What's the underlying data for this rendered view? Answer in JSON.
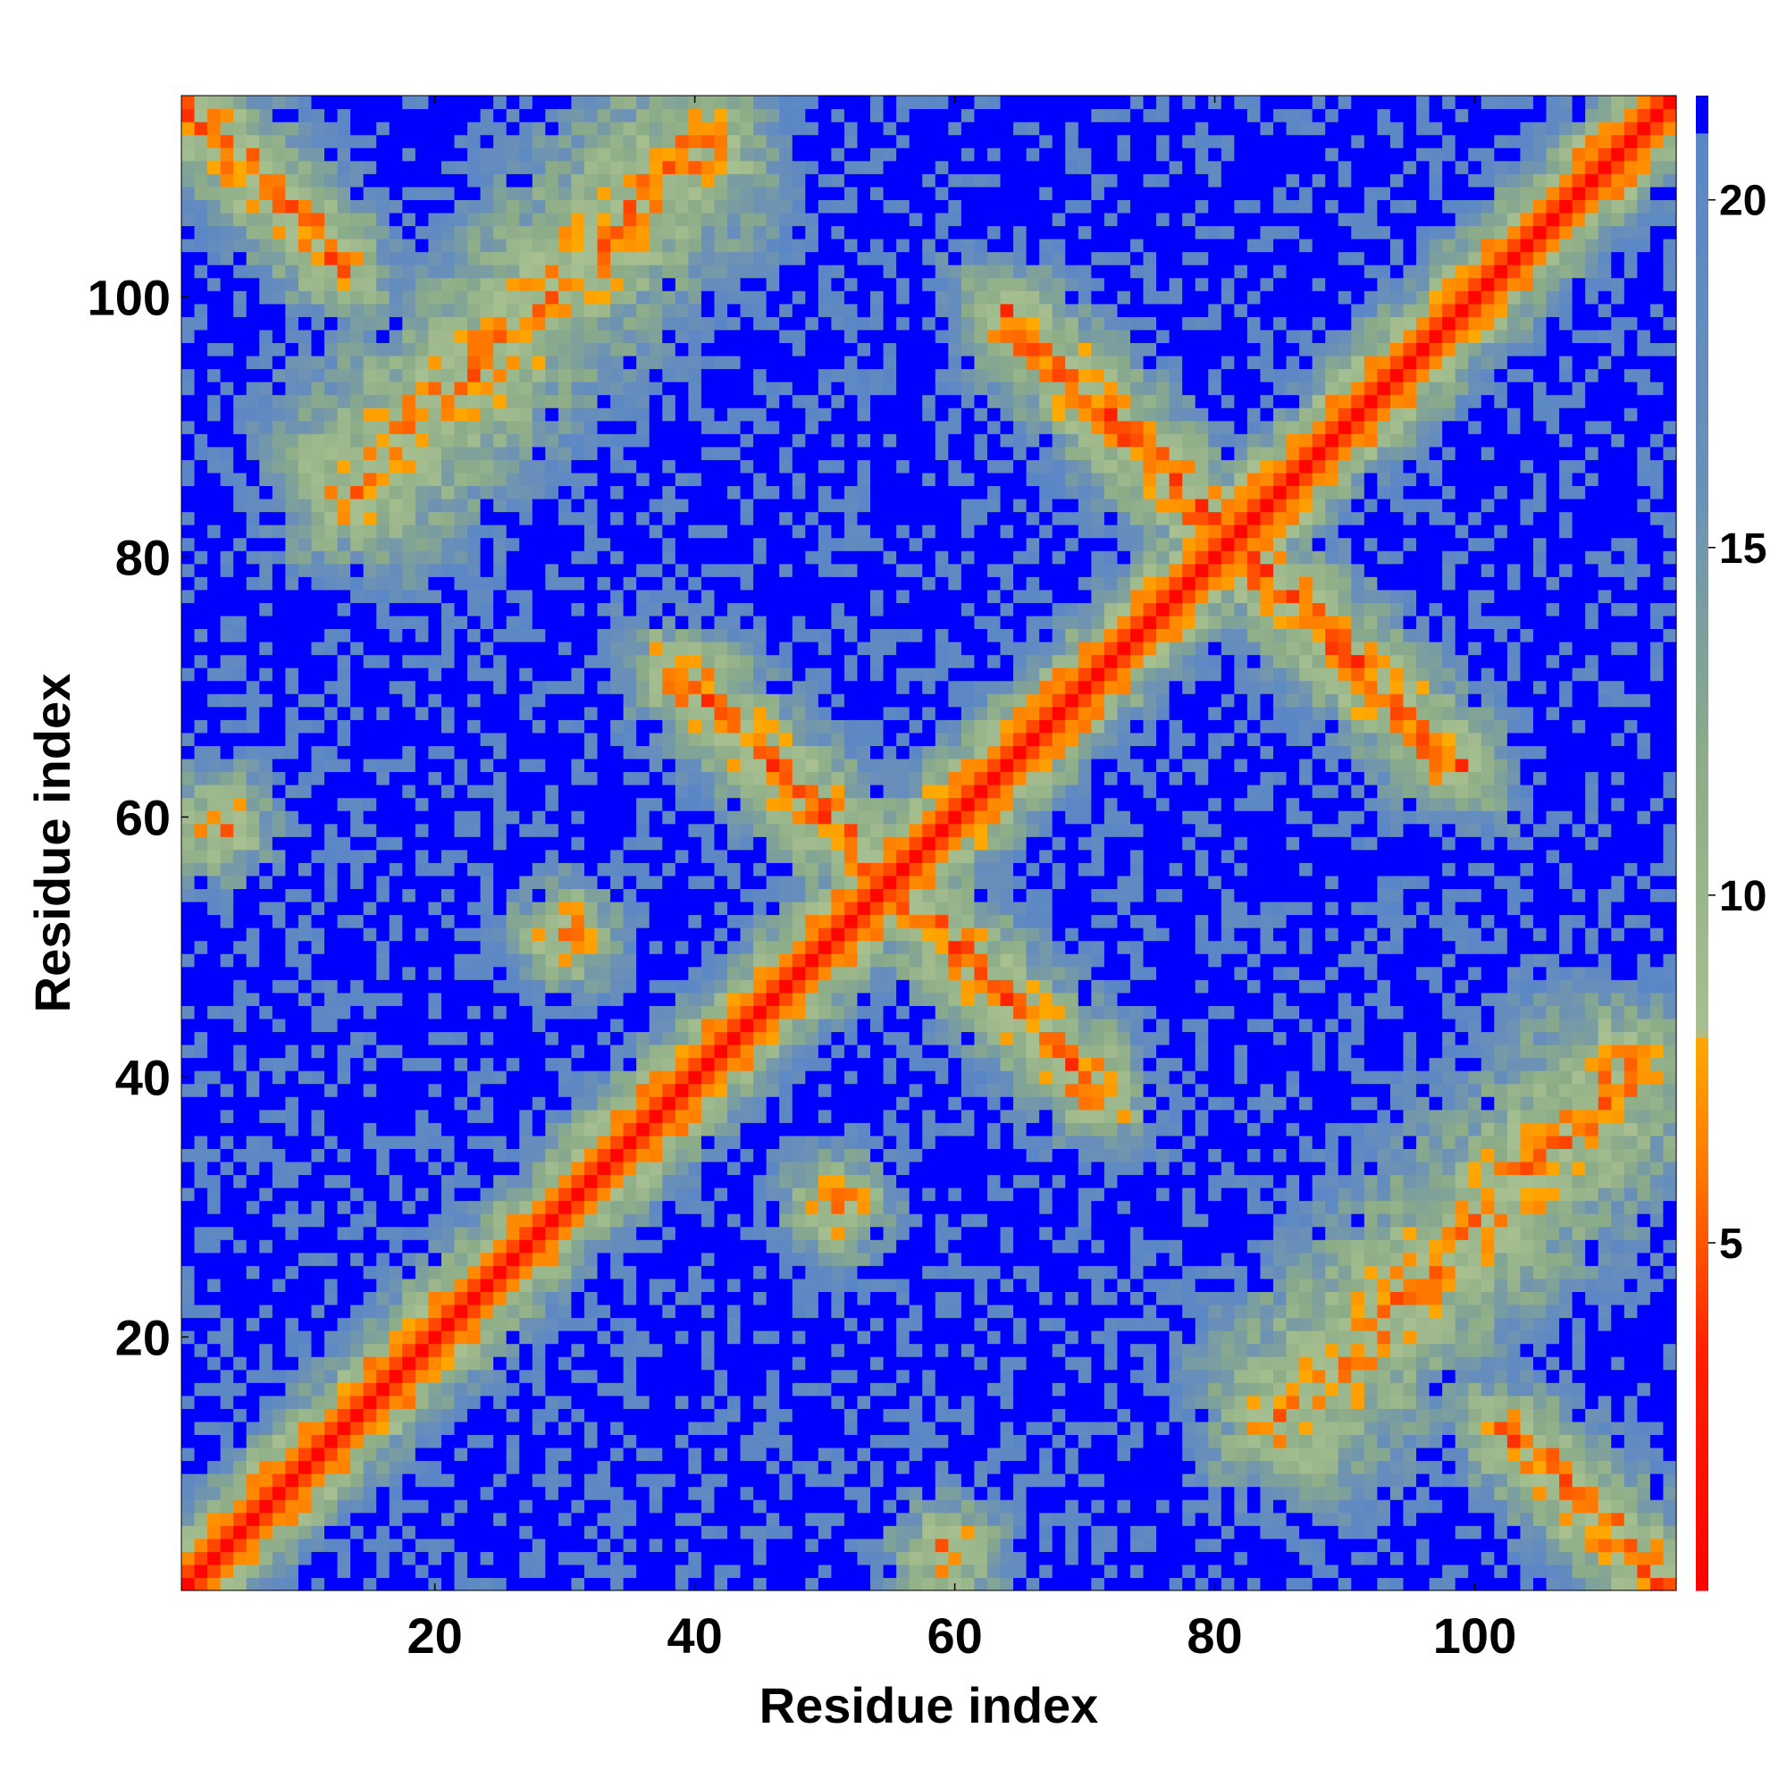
{
  "chart_data": {
    "type": "heatmap",
    "description_free": true,
    "n_residues": 115,
    "xlabel": "Residue index",
    "ylabel": "Residue index",
    "xlim": [
      0.5,
      115.5
    ],
    "ylim": [
      0.5,
      115.5
    ],
    "xticks": [
      20,
      40,
      60,
      80,
      100
    ],
    "yticks": [
      20,
      40,
      60,
      80,
      100
    ],
    "colorbar": {
      "range": [
        0,
        21.5
      ],
      "ticks": [
        5,
        10,
        15,
        20
      ],
      "stops": [
        {
          "value": 0,
          "color": "#ff0000"
        },
        {
          "value": 3.5,
          "color": "#ff2200"
        },
        {
          "value": 6.0,
          "color": "#ff7700"
        },
        {
          "value": 8.0,
          "color": "#ffaa00"
        },
        {
          "value": 8.01,
          "color": "#a8c090"
        },
        {
          "value": 12.0,
          "color": "#8cac88"
        },
        {
          "value": 16.0,
          "color": "#6a90b8"
        },
        {
          "value": 21.0,
          "color": "#5a86c8"
        },
        {
          "value": 21.01,
          "color": "#0000ff"
        },
        {
          "value": 21.5,
          "color": "#0000ff"
        }
      ]
    },
    "contact_features": [
      {
        "kind": "diagonal_band"
      },
      {
        "kind": "antiparallel_pair",
        "i": [
          1,
          12
        ],
        "j": [
          103,
          115
        ]
      },
      {
        "kind": "antiparallel_pair",
        "i": [
          40,
          55
        ],
        "j": [
          55,
          70
        ]
      },
      {
        "kind": "antiparallel_pair",
        "i": [
          65,
          80
        ],
        "j": [
          80,
          100
        ]
      },
      {
        "kind": "parallel_pair",
        "i": [
          14,
          40
        ],
        "j": [
          85,
          112
        ]
      },
      {
        "kind": "isolated_contact",
        "i": [
          1,
          6
        ],
        "j": [
          57,
          62
        ]
      },
      {
        "kind": "isolated_contact",
        "i": [
          47,
          55
        ],
        "j": [
          27,
          33
        ]
      },
      {
        "kind": "isolated_contact",
        "i": [
          90,
          95
        ],
        "j": [
          66,
          72
        ]
      }
    ]
  }
}
